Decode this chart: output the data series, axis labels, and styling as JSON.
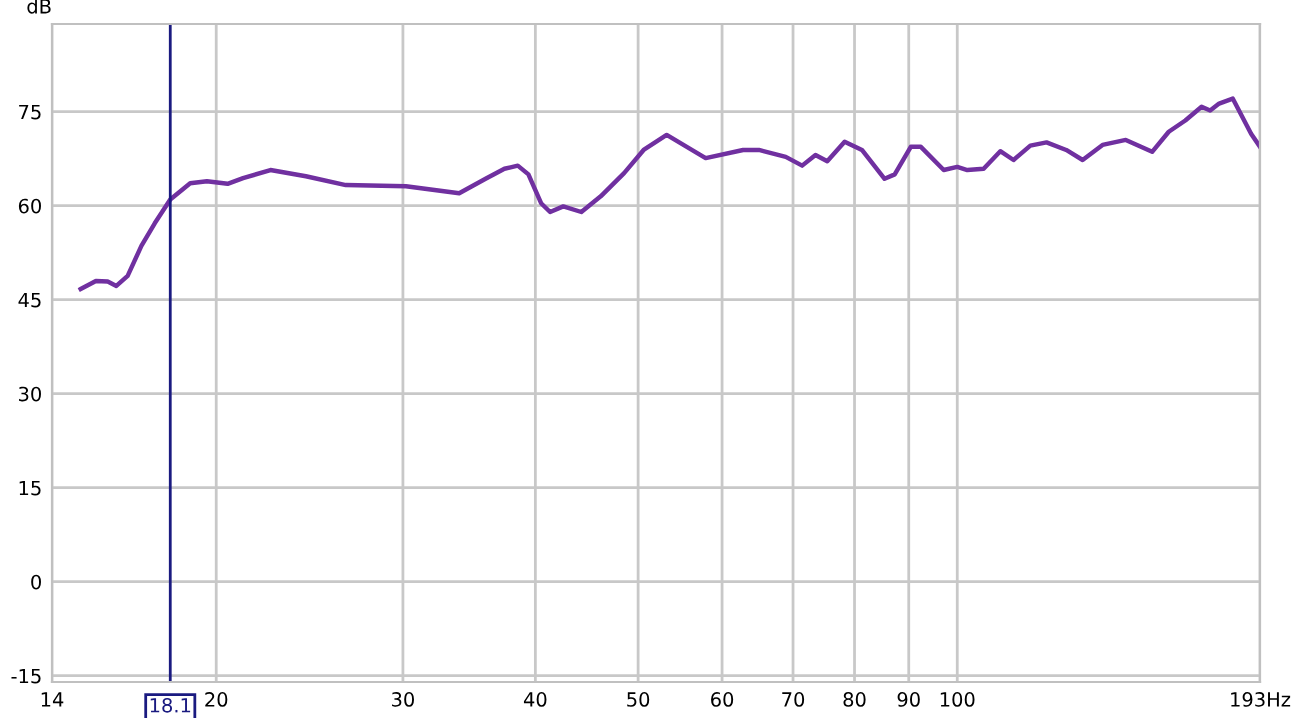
{
  "chart_data": {
    "type": "line",
    "ylabel": "dB",
    "log": "x",
    "grid": true,
    "legend": false,
    "marker": "none",
    "line_style": "solid",
    "xlim": [
      14,
      193
    ],
    "ylim": [
      -16,
      89
    ],
    "xticks": [
      14,
      20,
      30,
      40,
      50,
      60,
      70,
      80,
      90,
      100,
      {
        "value": 193,
        "label": "193Hz"
      }
    ],
    "yticks": [
      -15,
      0,
      15,
      30,
      45,
      60,
      75
    ],
    "ref_lines": [
      {
        "axis": "x",
        "value": 18.1,
        "label": "18.1",
        "color": "#1a1a80"
      }
    ],
    "series": [
      {
        "color": "#7030a0",
        "x": [
          14.9,
          15.4,
          15.8,
          16.1,
          16.5,
          17.0,
          17.5,
          18.1,
          18.9,
          19.6,
          20.5,
          21.2,
          22.5,
          24.3,
          26.5,
          30.2,
          33.9,
          35.9,
          37.4,
          38.5,
          39.4,
          40.5,
          41.3,
          42.5,
          44.2,
          46.1,
          48.5,
          50.6,
          53.2,
          57.9,
          62.8,
          65.0,
          68.9,
          71.4,
          73.5,
          75.4,
          78.3,
          81.3,
          85.4,
          87.3,
          90.4,
          92.4,
          97.1,
          100,
          102.2,
          105.9,
          109.8,
          113.0,
          117.2,
          121.4,
          126.7,
          131.3,
          137.1,
          144.2,
          152.7,
          158.3,
          164.1,
          170.0,
          173.2,
          176.6,
          181.9,
          189.3,
          193
        ],
        "values": [
          46.7,
          48.0,
          47.9,
          47.2,
          48.8,
          53.6,
          57.2,
          61.0,
          63.6,
          63.9,
          63.5,
          64.4,
          65.7,
          64.7,
          63.3,
          63.1,
          62.0,
          64.3,
          65.9,
          66.4,
          65.0,
          60.4,
          59.0,
          59.9,
          59.0,
          61.5,
          65.2,
          68.9,
          71.3,
          67.6,
          68.9,
          68.9,
          67.8,
          66.4,
          68.1,
          67.1,
          70.2,
          68.9,
          64.3,
          65.0,
          69.4,
          69.4,
          65.7,
          66.2,
          65.7,
          65.9,
          68.7,
          67.3,
          69.6,
          70.1,
          68.9,
          67.3,
          69.7,
          70.5,
          68.6,
          71.8,
          73.6,
          75.8,
          75.2,
          76.3,
          77.1,
          71.5,
          69.4
        ]
      }
    ]
  }
}
